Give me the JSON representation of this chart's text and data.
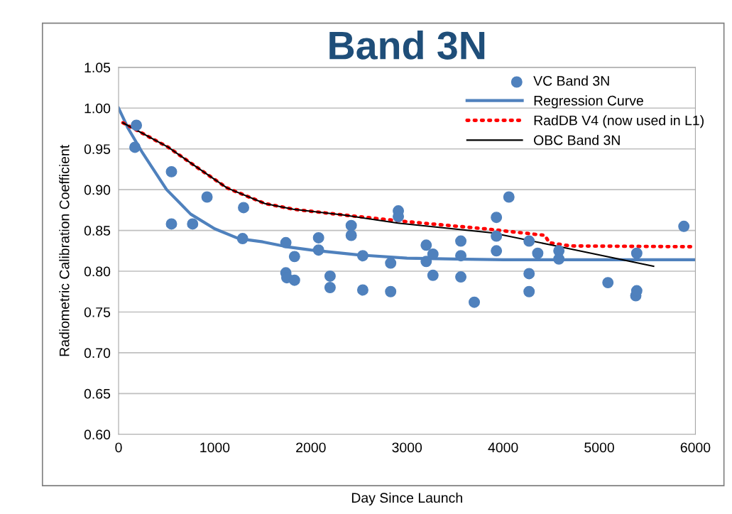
{
  "chart_data": {
    "type": "scatter",
    "title": "Band 3N",
    "xlabel": "Day Since Launch",
    "ylabel": "Radiometric Calibration Coefficient",
    "xlim": [
      0,
      6000
    ],
    "xticks": [
      0,
      1000,
      2000,
      3000,
      4000,
      5000,
      6000
    ],
    "ylim": [
      0.6,
      1.05
    ],
    "yticks": [
      {
        "value": 0.6,
        "label": "0.60"
      },
      {
        "value": 0.65,
        "label": "0.65"
      },
      {
        "value": 0.7,
        "label": "0.70"
      },
      {
        "value": 0.75,
        "label": "0.75"
      },
      {
        "value": 0.8,
        "label": "0.80"
      },
      {
        "value": 0.85,
        "label": "0.85"
      },
      {
        "value": 0.9,
        "label": "0.90"
      },
      {
        "value": 0.95,
        "label": "0.95"
      },
      {
        "value": 1.0,
        "label": "1.00"
      },
      {
        "value": 1.05,
        "label": "1.05"
      }
    ],
    "grid": "y",
    "legend": "top right",
    "series": [
      {
        "name": "VC Band 3N",
        "marker": "circle",
        "color": "#4f81bd",
        "x": [
          185,
          170,
          550,
          550,
          770,
          920,
          1300,
          1290,
          1740,
          1740,
          1750,
          1830,
          1830,
          2080,
          2080,
          2200,
          2200,
          2420,
          2420,
          2540,
          2540,
          2830,
          2830,
          2910,
          2910,
          3200,
          3200,
          3270,
          3270,
          3560,
          3560,
          3560,
          3700,
          3930,
          3930,
          3930,
          4060,
          4270,
          4270,
          4270,
          4360,
          4580,
          4580,
          5090,
          5380,
          5390,
          5390,
          5880
        ],
        "values": [
          0.979,
          0.952,
          0.922,
          0.858,
          0.858,
          0.891,
          0.878,
          0.84,
          0.835,
          0.798,
          0.792,
          0.818,
          0.789,
          0.841,
          0.826,
          0.794,
          0.78,
          0.856,
          0.844,
          0.819,
          0.777,
          0.81,
          0.775,
          0.874,
          0.867,
          0.832,
          0.812,
          0.821,
          0.795,
          0.837,
          0.819,
          0.793,
          0.762,
          0.866,
          0.843,
          0.825,
          0.891,
          0.837,
          0.797,
          0.775,
          0.822,
          0.825,
          0.815,
          0.786,
          0.77,
          0.776,
          0.822,
          0.855
        ]
      },
      {
        "name": "Regression Curve",
        "type": "line",
        "line_style": "solid",
        "color": "#4f81bd",
        "x": [
          0,
          100,
          250,
          500,
          750,
          1000,
          1250,
          1500,
          1750,
          2000,
          2500,
          3000,
          3500,
          4000,
          5000,
          6000
        ],
        "values": [
          1.0,
          0.975,
          0.945,
          0.9,
          0.87,
          0.852,
          0.84,
          0.836,
          0.83,
          0.826,
          0.82,
          0.816,
          0.815,
          0.814,
          0.814,
          0.814
        ]
      },
      {
        "name": "RadDB V4 (now used in L1)",
        "type": "line",
        "line_style": "dotted",
        "color": "#ff0000",
        "x": [
          45,
          517,
          783,
          1130,
          1523,
          1818,
          2336,
          2979,
          3814,
          4435,
          4479,
          4700,
          6000
        ],
        "values": [
          0.982,
          0.952,
          0.93,
          0.902,
          0.883,
          0.876,
          0.869,
          0.861,
          0.852,
          0.844,
          0.835,
          0.831,
          0.83
        ]
      },
      {
        "name": "OBC Band 3N",
        "type": "line",
        "line_style": "solid",
        "color": "#000000",
        "x": [
          45,
          517,
          783,
          1130,
          1523,
          1818,
          2336,
          2905,
          3888,
          4508,
          5565
        ],
        "values": [
          0.982,
          0.952,
          0.93,
          0.902,
          0.883,
          0.876,
          0.869,
          0.859,
          0.847,
          0.832,
          0.806
        ]
      }
    ]
  }
}
